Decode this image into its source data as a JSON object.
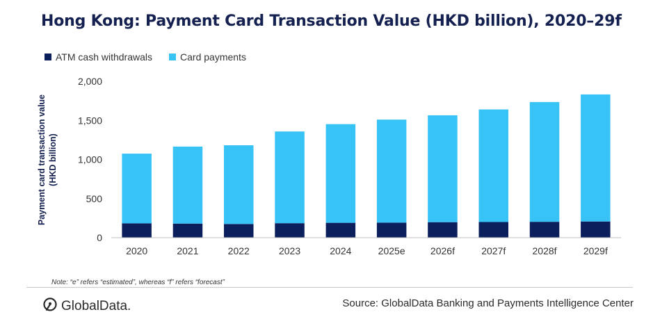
{
  "chart_data": {
    "type": "bar",
    "stacked": true,
    "title": "Hong Kong: Payment Card Transaction Value (HKD billion), 2020–29f",
    "ylabel_line1": "Payment card transaction value",
    "ylabel_line2": "(HKD billion)",
    "categories": [
      "2020",
      "2021",
      "2022",
      "2023",
      "2024",
      "2025e",
      "2026f",
      "2027f",
      "2028f",
      "2029f"
    ],
    "series": [
      {
        "name": "ATM cash withdrawals",
        "color": "#0a1f5c",
        "values": [
          183,
          180,
          175,
          185,
          190,
          192,
          198,
          200,
          203,
          207
        ]
      },
      {
        "name": "Card payments",
        "color": "#38c3f7",
        "values": [
          892,
          985,
          1007,
          1173,
          1262,
          1318,
          1367,
          1440,
          1532,
          1625
        ]
      }
    ],
    "ylim": [
      0,
      2000
    ],
    "yticks": [
      0,
      500,
      1000,
      1500,
      2000
    ],
    "ytick_labels": [
      "0",
      "500",
      "1,000",
      "1,500",
      "2,000"
    ],
    "grid": false,
    "legend_position": "top-left"
  },
  "note": "Note: “e” refers “estimated”, whereas “f” refers “forecast”",
  "logo": {
    "name": "GlobalData.",
    "icon": "globaldata-logo-icon"
  },
  "source": "Source: GlobalData Banking and Payments Intelligence Center"
}
